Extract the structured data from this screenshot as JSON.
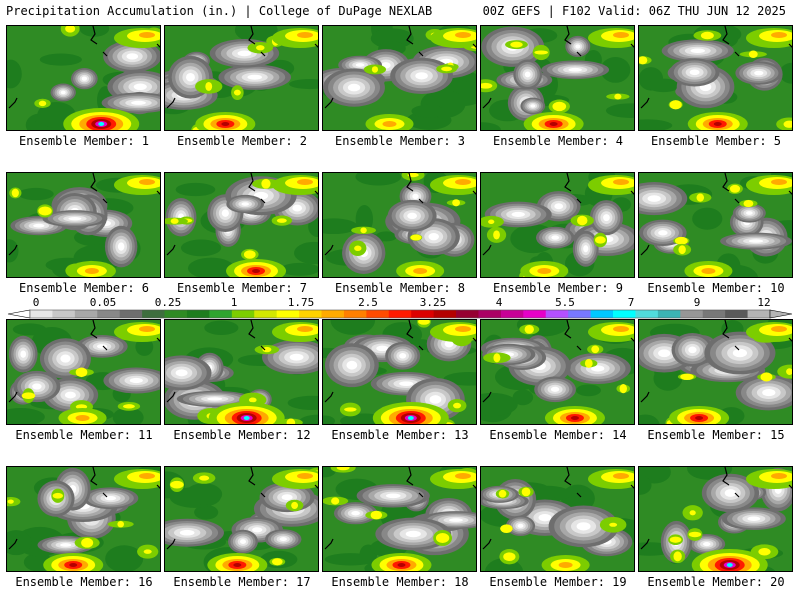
{
  "header": {
    "left": "Precipitation Accumulation (in.) | College of DuPage NEXLAB",
    "right": "00Z GEFS | F102 Valid: 06Z THU JUN 12 2025"
  },
  "panels": [
    {
      "label": "Ensemble Member: 1",
      "hotspot": "strong"
    },
    {
      "label": "Ensemble Member: 2",
      "hotspot": "medium"
    },
    {
      "label": "Ensemble Member: 3",
      "hotspot": "weak"
    },
    {
      "label": "Ensemble Member: 4",
      "hotspot": "medium"
    },
    {
      "label": "Ensemble Member: 5",
      "hotspot": "medium"
    },
    {
      "label": "Ensemble Member: 6",
      "hotspot": "weak"
    },
    {
      "label": "Ensemble Member: 7",
      "hotspot": "medium"
    },
    {
      "label": "Ensemble Member: 8",
      "hotspot": "weak"
    },
    {
      "label": "Ensemble Member: 9",
      "hotspot": "weak"
    },
    {
      "label": "Ensemble Member: 10",
      "hotspot": "weak"
    },
    {
      "label": "Ensemble Member: 11",
      "hotspot": "weak"
    },
    {
      "label": "Ensemble Member: 12",
      "hotspot": "strong"
    },
    {
      "label": "Ensemble Member: 13",
      "hotspot": "strong"
    },
    {
      "label": "Ensemble Member: 14",
      "hotspot": "medium"
    },
    {
      "label": "Ensemble Member: 15",
      "hotspot": "medium"
    },
    {
      "label": "Ensemble Member: 16",
      "hotspot": "medium"
    },
    {
      "label": "Ensemble Member: 17",
      "hotspot": "medium"
    },
    {
      "label": "Ensemble Member: 18",
      "hotspot": "medium"
    },
    {
      "label": "Ensemble Member: 19",
      "hotspot": "weak"
    },
    {
      "label": "Ensemble Member: 20",
      "hotspot": "strong"
    }
  ],
  "colorbar": {
    "tick_labels": [
      "0",
      "0.05",
      "0.25",
      "1",
      "1.75",
      "2.5",
      "3.25",
      "4",
      "5.5",
      "7",
      "9",
      "12"
    ],
    "colors": [
      "#e6e6e6",
      "#c8c8c8",
      "#a8a8a8",
      "#888888",
      "#6e6e6e",
      "#3e6e3e",
      "#2f8b24",
      "#1e7d1e",
      "#2fa52f",
      "#7ccd00",
      "#d2e600",
      "#ffff00",
      "#ffd200",
      "#ffaa00",
      "#ff7f00",
      "#ff4b00",
      "#ff1900",
      "#dc0000",
      "#b40000",
      "#960032",
      "#aa0064",
      "#c80096",
      "#e600c8",
      "#b450ff",
      "#7878ff",
      "#00c8ff",
      "#00ffff",
      "#50dcdc",
      "#3cb4b4",
      "#969696",
      "#787878",
      "#5a5a5a",
      "#b4b4b4"
    ]
  }
}
